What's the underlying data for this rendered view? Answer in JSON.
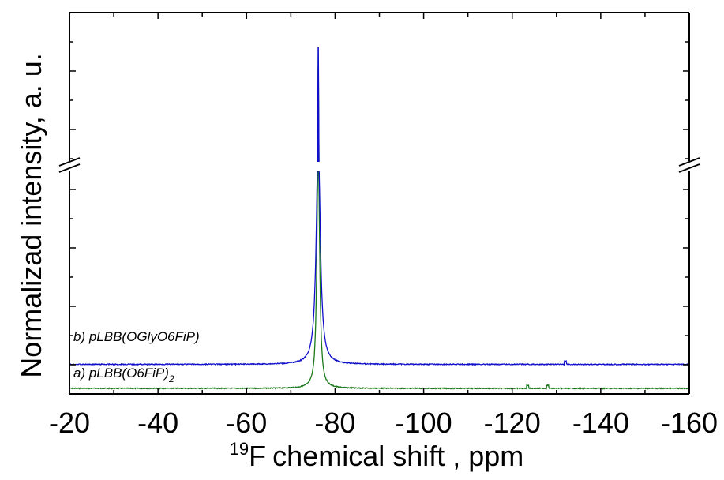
{
  "chart_data": {
    "type": "line",
    "title": "",
    "xlabel": "chemical shift , ppm",
    "xlabel_superscript": "19",
    "xlabel_element": "F",
    "ylabel": "Normalizad intensity, a. u.",
    "xlim": [
      -20,
      -160
    ],
    "x_axis_reversed": true,
    "x_ticks": [
      -20,
      -40,
      -60,
      -80,
      -100,
      -120,
      -140,
      -160
    ],
    "x_tick_labels": [
      "-20",
      "-40",
      "-60",
      "-80",
      "-100",
      "-120",
      "-140",
      "-160"
    ],
    "y_tick_labels_shown": false,
    "y_axis_break": true,
    "grid": false,
    "legend": "none",
    "series": [
      {
        "name": "pLBB(O6FiP)",
        "label_prefix": "a)",
        "label_subscript": "2",
        "color": "#1a7a1a",
        "baseline": 0.0,
        "peak_center": -76.2,
        "peak_relative_height": 1.0,
        "peak_halfwidth_ppm": 0.35,
        "minor_features": [
          -123.5,
          -128.0
        ]
      },
      {
        "name": "pLBB(OGlyO6FiP)",
        "label_prefix": "b)",
        "color": "#1010cc",
        "baseline": 0.11,
        "peak_center": -76.2,
        "peak_relative_height": 1.04,
        "peak_halfwidth_ppm": 0.55,
        "minor_features": [
          -132.0
        ]
      }
    ]
  }
}
